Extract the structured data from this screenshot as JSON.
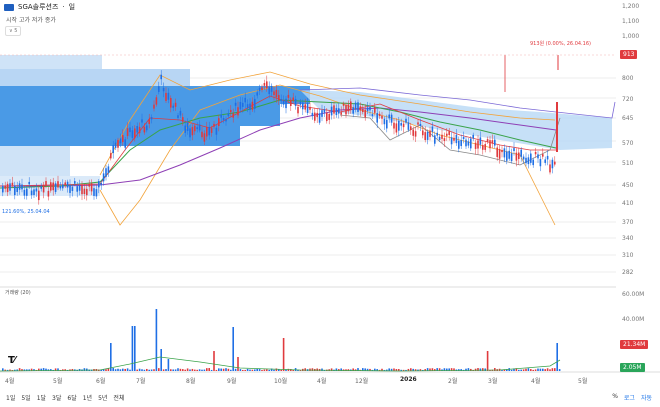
{
  "header": {
    "symbol": "SGA솔루션즈",
    "sep": "·",
    "period": "일"
  },
  "ohlc_labels": "시작  고가  저가  종가",
  "indicator_toggle": "∨ 5",
  "volume_label": "거래량 (20)",
  "price_axis": {
    "ticks": [
      "1,200",
      "1,100",
      "1,000",
      "913",
      "800",
      "720",
      "645",
      "570",
      "510",
      "450",
      "410",
      "370",
      "340",
      "310",
      "282"
    ]
  },
  "price_badge": {
    "value": "913",
    "color": "#e03a3e"
  },
  "volume_axis": {
    "ticks": [
      "60.00M",
      "40.00M",
      "20.00M"
    ]
  },
  "volume_badges": {
    "red": "21.34M",
    "green": "2.05M"
  },
  "annotations": {
    "high": "913원 (0.00%, 26.04.16)",
    "low": "121.60%, 25.04.04"
  },
  "time_axis": [
    {
      "label": "4월",
      "bold": false
    },
    {
      "label": "5월",
      "bold": false
    },
    {
      "label": "6월",
      "bold": false
    },
    {
      "label": "7월",
      "bold": false
    },
    {
      "label": "8월",
      "bold": false
    },
    {
      "label": "9월",
      "bold": false
    },
    {
      "label": "10월",
      "bold": false
    },
    {
      "label": "4월",
      "bold": false
    },
    {
      "label": "12월",
      "bold": false
    },
    {
      "label": "2026",
      "bold": true
    },
    {
      "label": "2월",
      "bold": false
    },
    {
      "label": "3월",
      "bold": false
    },
    {
      "label": "4월",
      "bold": false
    },
    {
      "label": "5월",
      "bold": false
    }
  ],
  "ranges": [
    "1일",
    "5일",
    "1달",
    "3달",
    "6달",
    "1년",
    "5년",
    "전체"
  ],
  "options": [
    "%",
    "로그",
    "자동"
  ],
  "colors": {
    "up": "#e03a3e",
    "down": "#1f6fe5",
    "profile": "#4a9ae6",
    "cloud": "#b8d8f5",
    "ma_purple": "#8e3fb5",
    "ma_orange": "#f2a33a",
    "ma_green": "#3aa34a"
  }
}
